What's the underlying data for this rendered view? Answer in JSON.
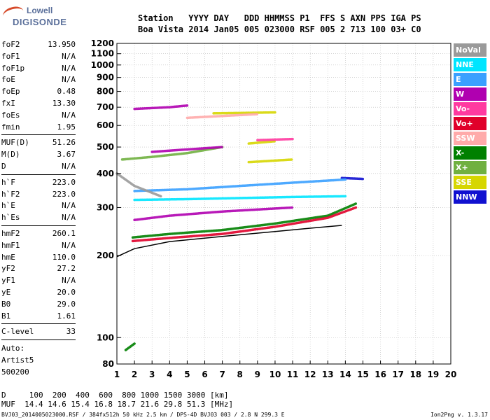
{
  "logo": {
    "line1": "Lowell",
    "line2": "DIGISONDE"
  },
  "header": {
    "line1": "Station   YYYY DAY   DDD HHMMSS P1  FFS S AXN PPS IGA PS",
    "line2": "Boa Vista 2014 Jan05 005 023000 RSF 005 2 713 100 03+ C0"
  },
  "params_group1": [
    {
      "label": "foF2",
      "value": "13.950"
    },
    {
      "label": "foF1",
      "value": "N/A"
    },
    {
      "label": "foF1p",
      "value": "N/A"
    },
    {
      "label": "foE",
      "value": "N/A"
    },
    {
      "label": "foEp",
      "value": "0.48"
    },
    {
      "label": "fxI",
      "value": "13.30"
    },
    {
      "label": "foEs",
      "value": "N/A"
    },
    {
      "label": "fmin",
      "value": "1.95"
    }
  ],
  "params_group2": [
    {
      "label": "MUF(D)",
      "value": "51.26"
    },
    {
      "label": "M(D)",
      "value": "3.67"
    },
    {
      "label": "D",
      "value": "N/A"
    }
  ],
  "params_group3": [
    {
      "label": "h`F",
      "value": "223.0"
    },
    {
      "label": "h`F2",
      "value": "223.0"
    },
    {
      "label": "h`E",
      "value": "N/A"
    },
    {
      "label": "h`Es",
      "value": "N/A"
    }
  ],
  "params_group4": [
    {
      "label": "hmF2",
      "value": "260.1"
    },
    {
      "label": "hmF1",
      "value": "N/A"
    },
    {
      "label": "hmE",
      "value": "110.0"
    },
    {
      "label": "yF2",
      "value": "27.2"
    },
    {
      "label": "yF1",
      "value": "N/A"
    },
    {
      "label": "yE",
      "value": "20.0"
    },
    {
      "label": "B0",
      "value": "29.0"
    },
    {
      "label": "B1",
      "value": "1.61"
    }
  ],
  "clevel": {
    "label": "C-level",
    "value": "33"
  },
  "auto": {
    "line1": "Auto:",
    "line2": "Artist5",
    "line3": "500200"
  },
  "legend": [
    {
      "label": "NoVal",
      "color": "#9a9a9a"
    },
    {
      "label": "NNE",
      "color": "#00e5ff"
    },
    {
      "label": "E",
      "color": "#3aa0ff"
    },
    {
      "label": "W",
      "color": "#b000b0"
    },
    {
      "label": "Vo-",
      "color": "#ff3aa0"
    },
    {
      "label": "Vo+",
      "color": "#e0002a"
    },
    {
      "label": "SSW",
      "color": "#ffaaaa"
    },
    {
      "label": "X-",
      "color": "#008000"
    },
    {
      "label": "X+",
      "color": "#70b040"
    },
    {
      "label": "SSE",
      "color": "#d6d600"
    },
    {
      "label": "NNW",
      "color": "#1010d0"
    }
  ],
  "bottom": {
    "line1": "D     100  200  400  600  800 1000 1500 3000 [km]",
    "line2": "MUF  14.4 14.6 15.4 16.8 18.7 21.6 29.8 51.3 [MHz]"
  },
  "footer": {
    "file": "BVJ03_2014005023000.RSF / 384fx512h 50 kHz 2.5 km / DPS-4D BVJ03 003 / 2.8 N 299.3 E",
    "version": "Ion2Png v. 1.3.17"
  },
  "chart_data": {
    "type": "scatter",
    "x_ticks": [
      "1",
      "2",
      "3",
      "4",
      "5",
      "6",
      "7",
      "8",
      "9",
      "10",
      "11",
      "12",
      "13",
      "14",
      "15",
      "16",
      "17",
      "18",
      "19",
      "20"
    ],
    "y_ticks": [
      "80",
      "100",
      "200",
      "300",
      "400",
      "500",
      "600",
      "700",
      "800",
      "900",
      "1000",
      "1100",
      "1200"
    ],
    "xlim": [
      1,
      20
    ],
    "ylim": [
      80,
      1200
    ],
    "y_scale": "log",
    "grid": true,
    "legend_placement": "right",
    "traces": [
      {
        "series": "X-",
        "color": "#008000",
        "x": [
          1.9,
          4,
          7,
          10,
          13,
          14.6
        ],
        "y": [
          233,
          240,
          248,
          262,
          280,
          310
        ]
      },
      {
        "series": "Vo+",
        "color": "#e0002a",
        "x": [
          1.9,
          4,
          7,
          10,
          13,
          14.6
        ],
        "y": [
          226,
          232,
          240,
          255,
          275,
          300
        ]
      },
      {
        "series": "X+",
        "color": "#70b040",
        "x": [
          1.3,
          3,
          5,
          7
        ],
        "y": [
          450,
          460,
          475,
          500
        ]
      },
      {
        "series": "SSE",
        "color": "#d6d600",
        "x": [
          6.5,
          8,
          10
        ],
        "y": [
          665,
          667,
          670
        ]
      },
      {
        "series": "SSE",
        "color": "#d6d600",
        "x": [
          8.5,
          10
        ],
        "y": [
          515,
          525
        ]
      },
      {
        "series": "SSW",
        "color": "#ffaaaa",
        "x": [
          5,
          7,
          9
        ],
        "y": [
          640,
          650,
          660
        ]
      },
      {
        "series": "W",
        "color": "#b000b0",
        "x": [
          2,
          4,
          7,
          11
        ],
        "y": [
          270,
          280,
          290,
          300
        ]
      },
      {
        "series": "W",
        "color": "#b000b0",
        "x": [
          2,
          3,
          4,
          5
        ],
        "y": [
          690,
          695,
          700,
          710
        ]
      },
      {
        "series": "W",
        "color": "#b000b0",
        "x": [
          3,
          5,
          7
        ],
        "y": [
          480,
          490,
          500
        ]
      },
      {
        "series": "NNW",
        "color": "#1010d0",
        "x": [
          13.8,
          15
        ],
        "y": [
          385,
          382
        ]
      },
      {
        "series": "E",
        "color": "#3aa0ff",
        "x": [
          2,
          5,
          8,
          11,
          14
        ],
        "y": [
          345,
          350,
          360,
          370,
          380
        ]
      },
      {
        "series": "NNE",
        "color": "#00e5ff",
        "x": [
          2,
          5,
          8,
          11,
          14
        ],
        "y": [
          320,
          322,
          325,
          328,
          330
        ]
      },
      {
        "series": "SSE",
        "color": "#d6d600",
        "x": [
          8.5,
          11
        ],
        "y": [
          440,
          450
        ]
      },
      {
        "series": "Vo-",
        "color": "#ff3aa0",
        "x": [
          9,
          11
        ],
        "y": [
          530,
          535
        ]
      },
      {
        "series": "X-",
        "color": "#008000",
        "x": [
          1.5,
          2.0
        ],
        "y": [
          90,
          95
        ]
      },
      {
        "series": "NoVal",
        "color": "#9a9a9a",
        "x": [
          1,
          2,
          3.5
        ],
        "y": [
          400,
          360,
          330
        ]
      }
    ],
    "profile_curve": {
      "x": [
        1.0,
        2,
        4,
        7,
        10,
        12,
        13.8
      ],
      "y": [
        198,
        212,
        225,
        235,
        245,
        252,
        258
      ]
    }
  }
}
